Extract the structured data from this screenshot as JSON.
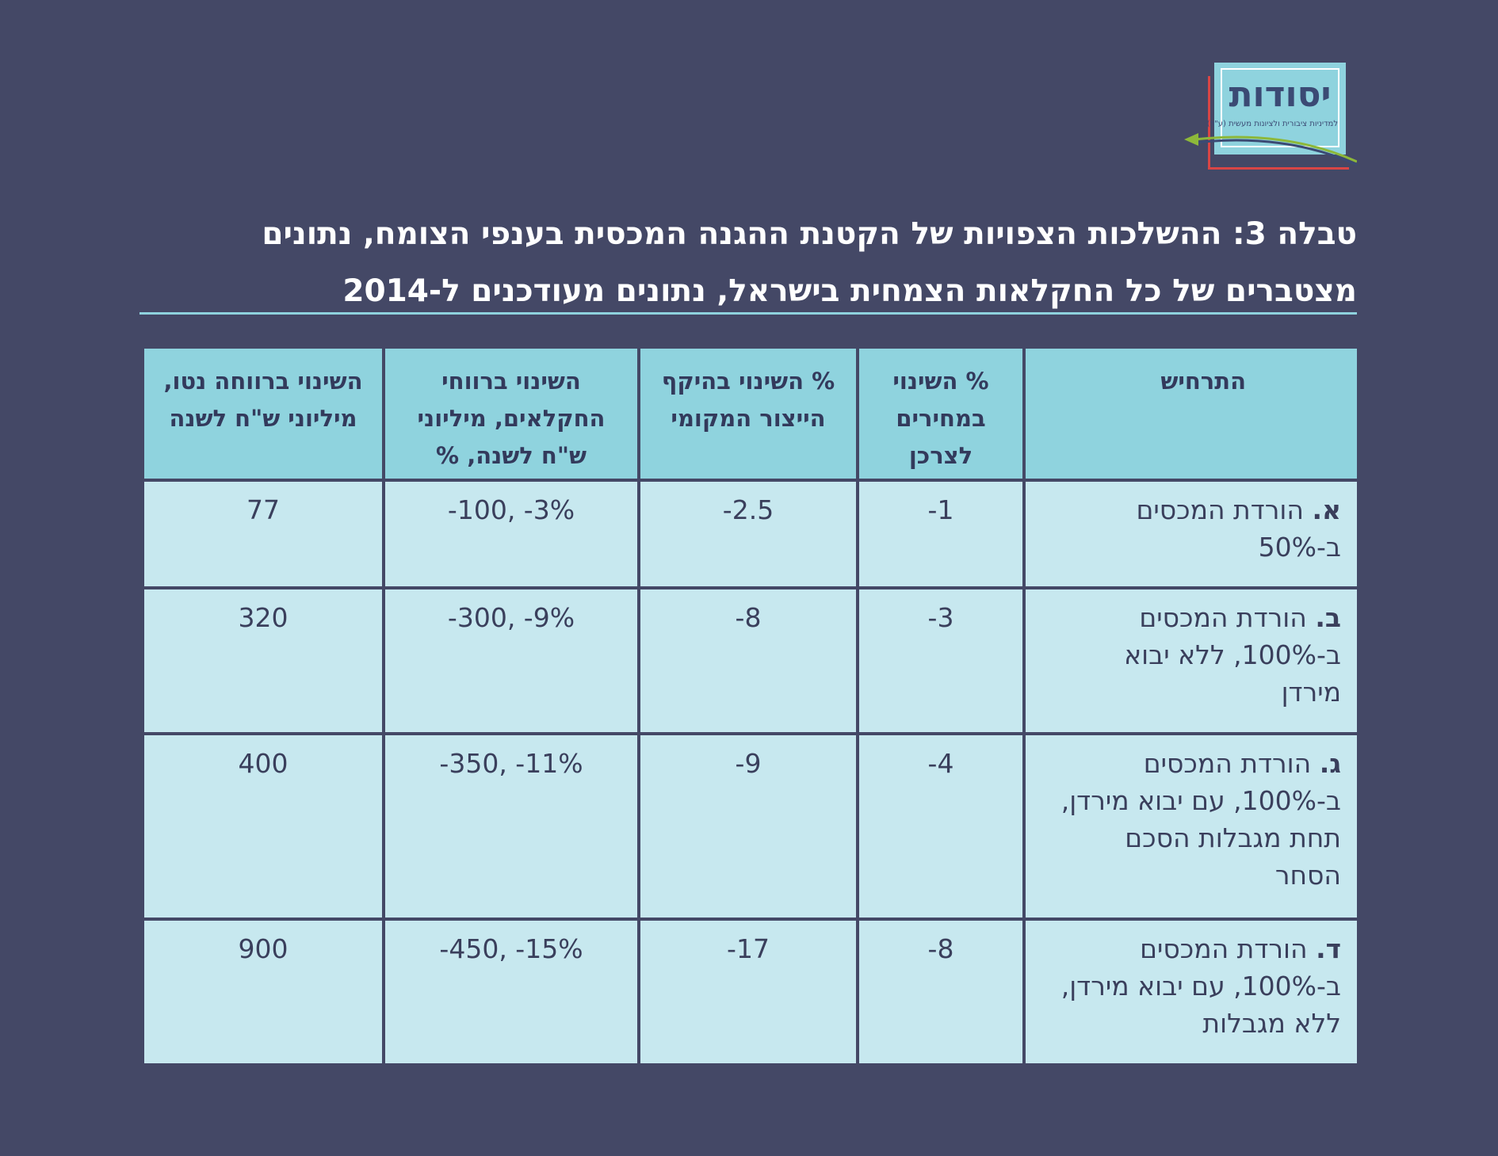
{
  "logo": {
    "name": "יסודות",
    "tagline": "למדיניות ציבורית ולציונות מעשית (ע\"ר)"
  },
  "title": {
    "line1": "טבלה 3: ההשלכות הצפויות של הקטנת ההגנה המכסית בענפי הצומח, נתונים",
    "line2": "מצטברים של כל החקלאות הצמחית בישראל, נתונים מעודכנים ל-2014"
  },
  "table": {
    "headers": {
      "scenario": "התרחיש",
      "consumer_price": "% השינוי במחירים לצרכן",
      "local_production": "% השינוי בהיקף הייצור המקומי",
      "farmer_profit": "השינוי ברווחי החקלאים, מיליוני ש\"ח לשנה, %",
      "net_welfare": "השינוי ברווחה נטו, מיליוני ש\"ח לשנה"
    },
    "rows": [
      {
        "letter": "א.",
        "scenario": "הורדת המכסים ב-50%",
        "consumer_price": "-1",
        "local_production": "-2.5",
        "farmer_profit": "-100, -3%",
        "net_welfare": "77"
      },
      {
        "letter": "ב.",
        "scenario": "הורדת המכסים ב-100%, ללא יבוא מירדן",
        "consumer_price": "-3",
        "local_production": "-8",
        "farmer_profit": "-300, -9%",
        "net_welfare": "320"
      },
      {
        "letter": "ג.",
        "scenario": "הורדת המכסים ב-100%, עם יבוא מירדן, תחת מגבלות הסכם הסחר",
        "consumer_price": "-4",
        "local_production": "-9",
        "farmer_profit": "-350, -11%",
        "net_welfare": "400"
      },
      {
        "letter": "ד.",
        "scenario": "הורדת המכסים ב-100%, עם יבוא מירדן, ללא מגבלות",
        "consumer_price": "-8",
        "local_production": "-17",
        "farmer_profit": "-450, -15%",
        "net_welfare": "900"
      }
    ]
  },
  "colors": {
    "background": "#444866",
    "header_fill": "#8fd3de",
    "cell_fill": "#c7e8ef",
    "text_dark": "#333a5c",
    "logo_red": "#d94545",
    "logo_green": "#8db83a"
  }
}
